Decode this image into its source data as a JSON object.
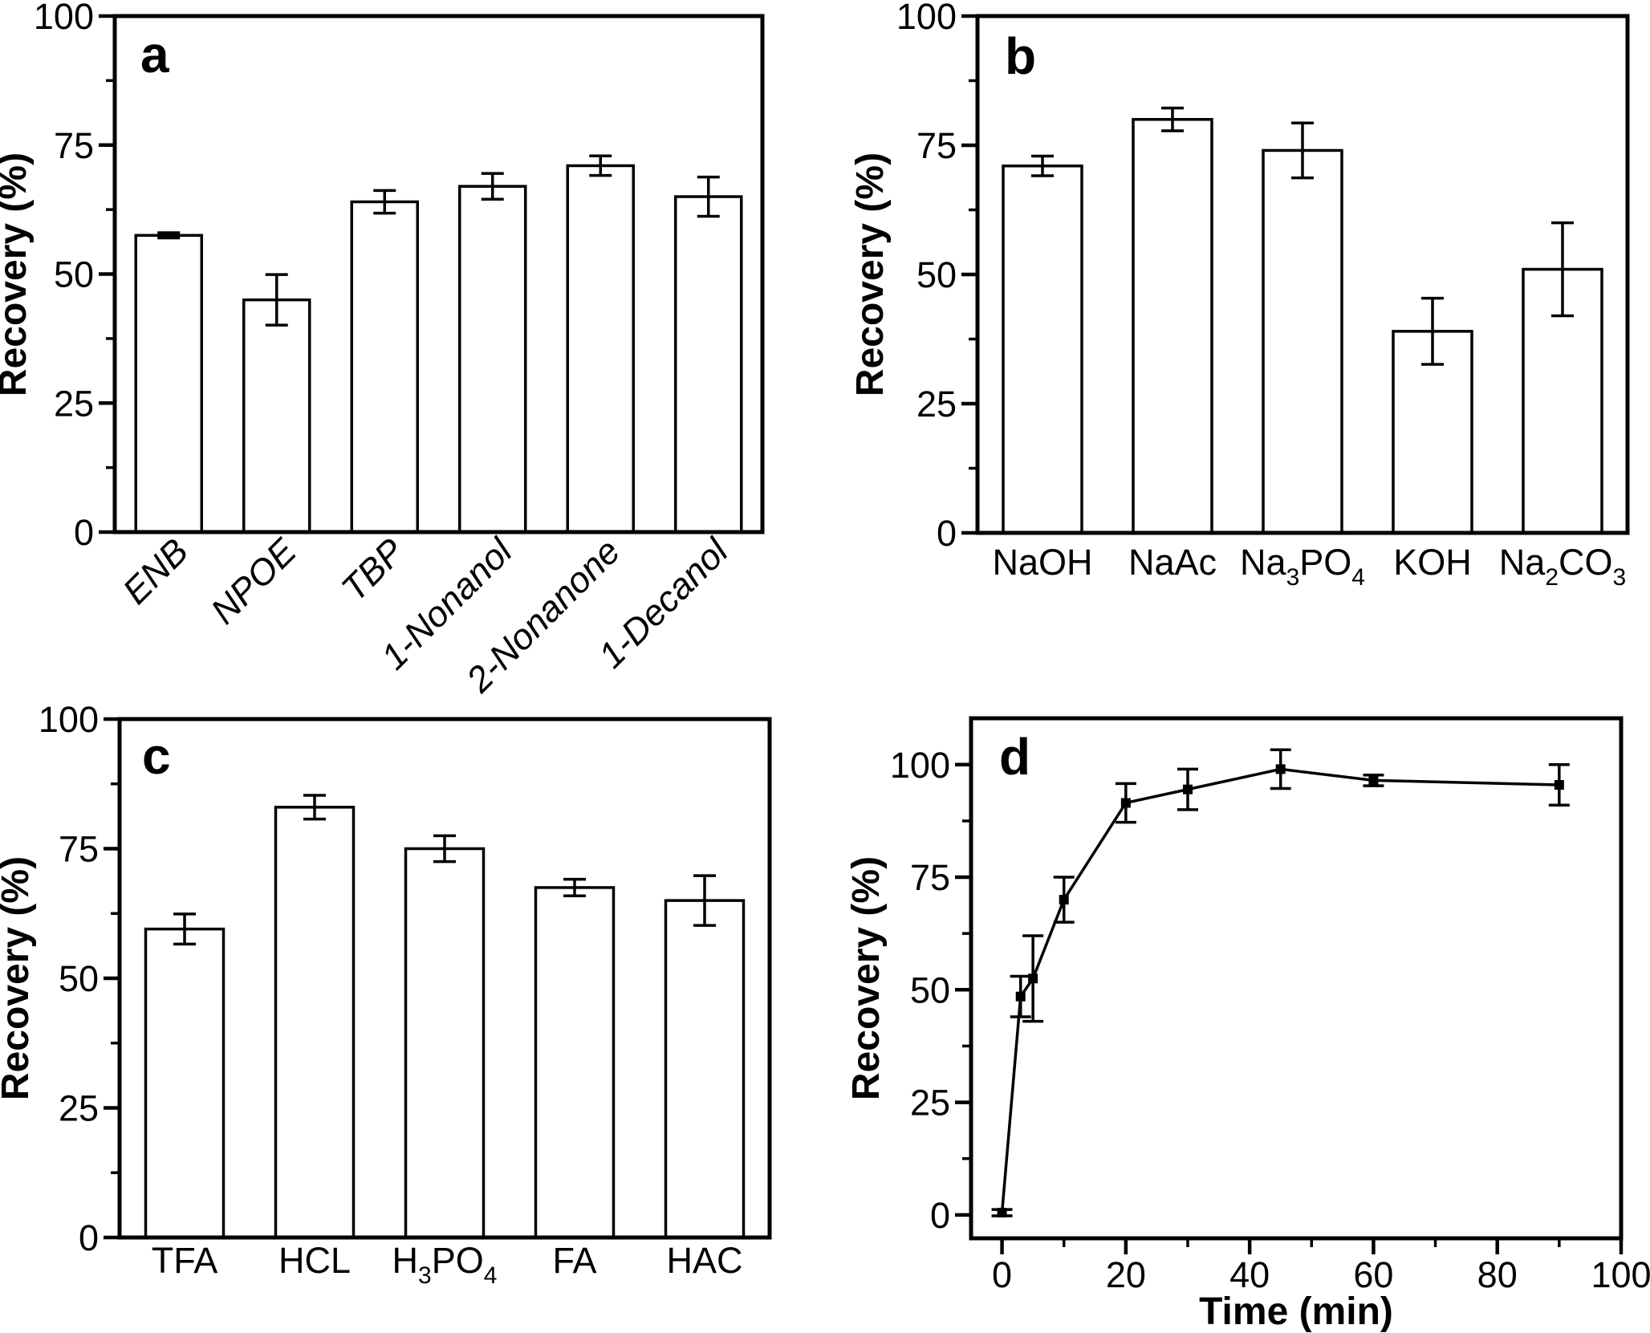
{
  "figure": {
    "background": "#ffffff",
    "ink": "#000000",
    "label_encoding": "underscore before a character marks it as a subscript",
    "panels": [
      "a",
      "b",
      "c",
      "d"
    ]
  },
  "chart_data": [
    {
      "id": "a",
      "panel_label": "a",
      "type": "bar",
      "ylabel": "Recovery (%)",
      "ylim": [
        0,
        100
      ],
      "yticks": [
        0,
        25,
        50,
        75,
        100
      ],
      "yminorticks": [
        12.5,
        37.5,
        62.5,
        87.5
      ],
      "categories": [
        "ENB",
        "NPOE",
        "TBP",
        "1-Nonanol",
        "2-Nonanone",
        "1-Decanol"
      ],
      "values": [
        57.5,
        45,
        64,
        67,
        71,
        65
      ],
      "errors": [
        0.5,
        4.9,
        2.2,
        2.5,
        1.9,
        3.8
      ],
      "bar_fill": "#ffffff",
      "bar_stroke": "#000000",
      "category_label_style": "italic rotated 45deg",
      "grid": "off",
      "legend": "none"
    },
    {
      "id": "b",
      "panel_label": "b",
      "type": "bar",
      "ylabel": "Recovery (%)",
      "ylim": [
        0,
        100
      ],
      "yticks": [
        0,
        25,
        50,
        75,
        100
      ],
      "yminorticks": [
        12.5,
        37.5,
        62.5,
        87.5
      ],
      "categories": [
        "NaOH",
        "NaAc",
        "Na_3PO_4",
        "KOH",
        "Na_2CO_3"
      ],
      "values": [
        71,
        80,
        74,
        39,
        51
      ],
      "errors": [
        1.9,
        2.2,
        5.3,
        6.4,
        9
      ],
      "bar_fill": "#ffffff",
      "bar_stroke": "#000000",
      "category_label_style": "upright",
      "grid": "off",
      "legend": "none"
    },
    {
      "id": "c",
      "panel_label": "c",
      "type": "bar",
      "ylabel": "Recovery (%)",
      "ylim": [
        0,
        100
      ],
      "yticks": [
        0,
        25,
        50,
        75,
        100
      ],
      "yminorticks": [
        12.5,
        37.5,
        62.5,
        87.5
      ],
      "categories": [
        "TFA",
        "HCL",
        "H_3PO_4",
        "FA",
        "HAC"
      ],
      "values": [
        59.5,
        83,
        75,
        67.5,
        65
      ],
      "errors": [
        2.9,
        2.3,
        2.5,
        1.6,
        4.8
      ],
      "bar_fill": "#ffffff",
      "bar_stroke": "#000000",
      "category_label_style": "upright",
      "grid": "off",
      "legend": "none"
    },
    {
      "id": "d",
      "panel_label": "d",
      "type": "line",
      "xlabel": "Time (min)",
      "ylabel": "Recovery (%)",
      "xlim": [
        -5,
        100
      ],
      "ylim": [
        -5.2,
        110.3
      ],
      "xticks": [
        0,
        20,
        40,
        60,
        80,
        100
      ],
      "xminorticks": [
        10,
        30,
        50,
        70,
        90
      ],
      "yticks": [
        0,
        25,
        50,
        75,
        100
      ],
      "yminorticks": [
        12.5,
        37.5,
        62.5,
        87.5
      ],
      "x": [
        0,
        3,
        5,
        10,
        20,
        30,
        45,
        60,
        90
      ],
      "y": [
        0.5,
        48.5,
        52.5,
        70,
        91.5,
        94.5,
        99,
        96.5,
        95.5
      ],
      "errors": [
        0.7,
        4.5,
        9.5,
        5,
        4.3,
        4.5,
        4.3,
        1.2,
        4.5
      ],
      "marker": "filled-square",
      "line_color": "#000000",
      "grid": "off",
      "legend": "none"
    }
  ]
}
